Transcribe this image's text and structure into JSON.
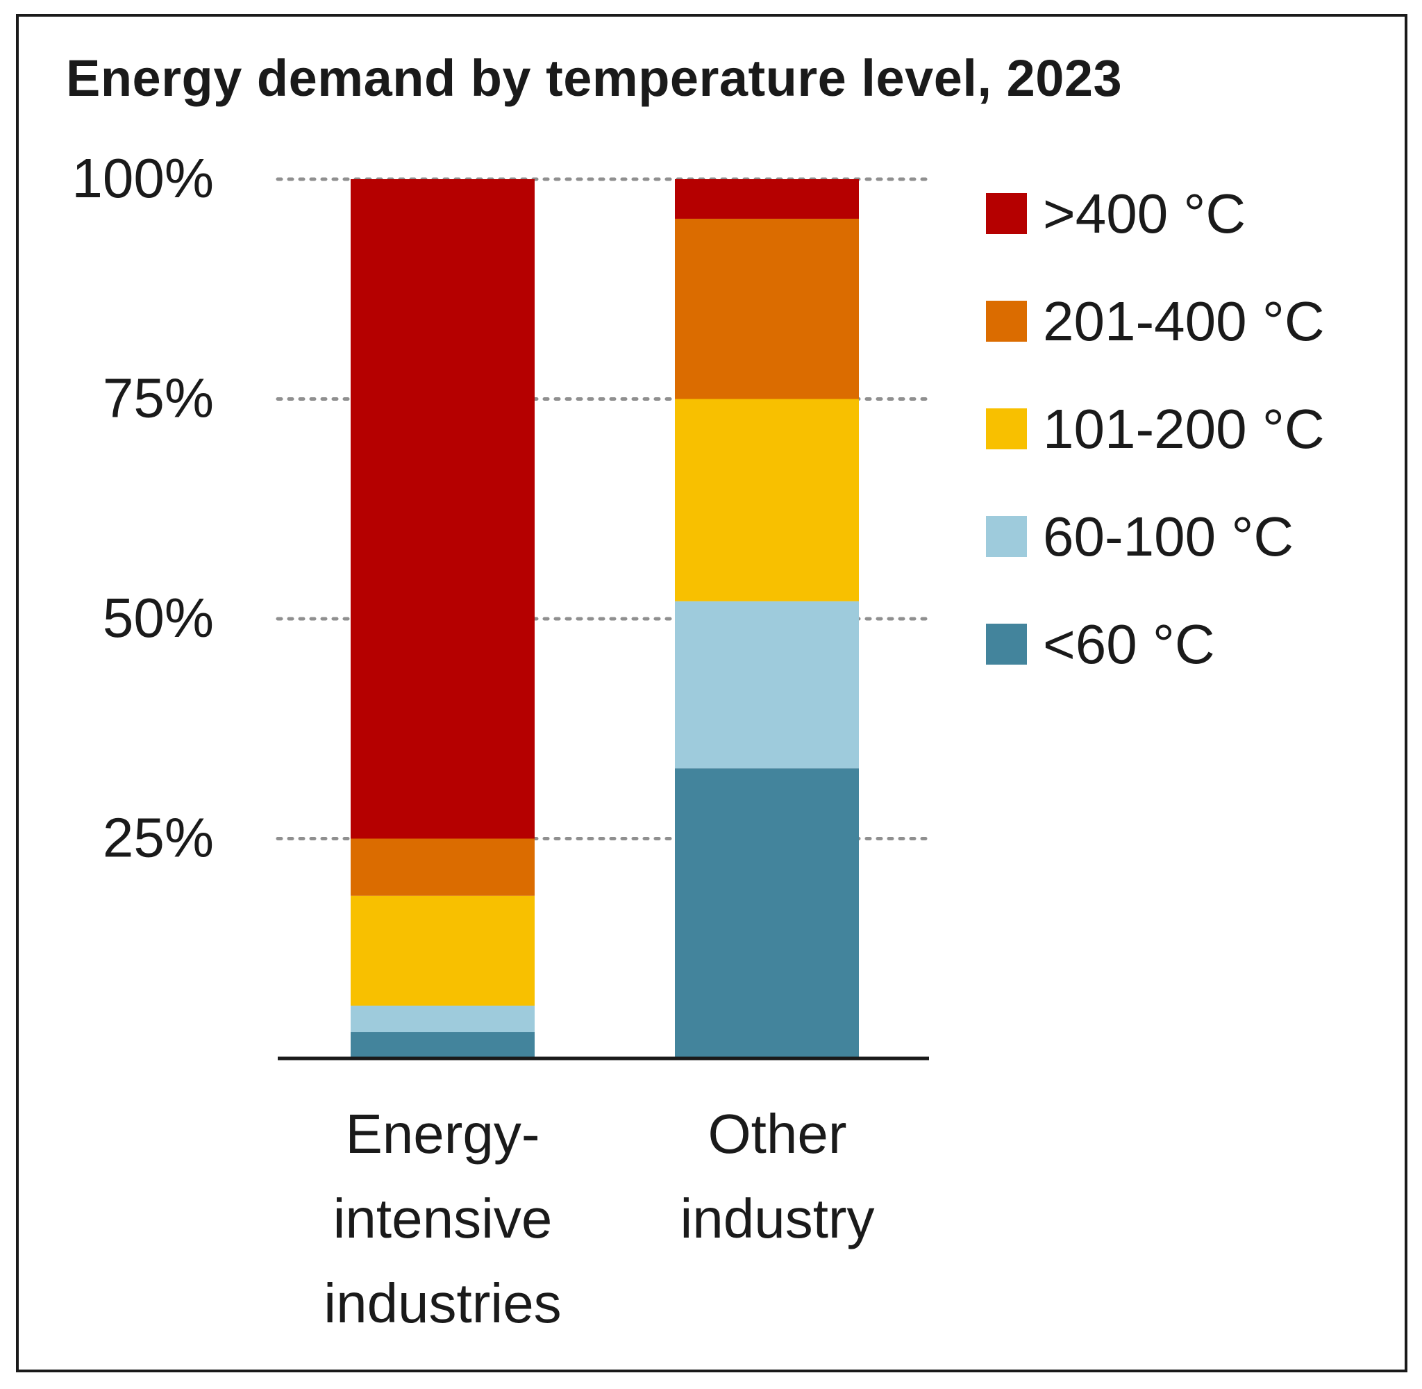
{
  "chart_data": {
    "type": "bar",
    "stacked": true,
    "title": "Energy demand by temperature level, 2023",
    "categories": [
      [
        "Energy-",
        "intensive",
        "industries"
      ],
      [
        "Other",
        "industry"
      ]
    ],
    "ylim": [
      0,
      100
    ],
    "yticks": [
      "100%",
      "75%",
      "50%",
      "25%"
    ],
    "ytick_values": [
      100,
      75,
      50,
      25
    ],
    "grid": "dotted",
    "legend_position": "right",
    "series": [
      {
        "name": "<60 °C",
        "color": "#43849c",
        "values": [
          3,
          33
        ]
      },
      {
        "name": "60-100 °C",
        "color": "#9ecbdc",
        "values": [
          3,
          19
        ]
      },
      {
        "name": "101-200 °C",
        "color": "#f8c000",
        "values": [
          12.5,
          23
        ]
      },
      {
        "name": "201-400 °C",
        "color": "#db6c00",
        "values": [
          6.5,
          20.5
        ]
      },
      {
        "name": ">400 °C",
        "color": "#b50000",
        "values": [
          75,
          4.5
        ]
      }
    ],
    "legend_order": [
      4,
      3,
      2,
      1,
      0
    ]
  }
}
